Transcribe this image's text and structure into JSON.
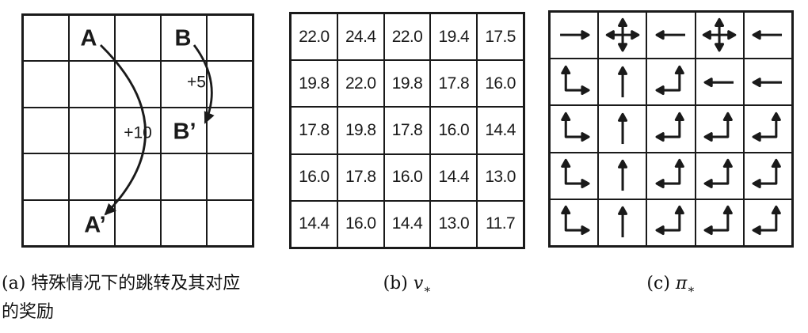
{
  "colors": {
    "ink": "#1a1a1a",
    "background": "#ffffff"
  },
  "panel_a": {
    "rows": 5,
    "cols": 5,
    "state_labels": {
      "A": "A",
      "B": "B",
      "A_prime": "A’",
      "B_prime": "B’"
    },
    "rewards": {
      "A_to_A_prime": "+10",
      "B_to_B_prime": "+5"
    },
    "caption": "(a) 特殊情况下的跳转及其对应的奖励"
  },
  "panel_b": {
    "caption_index": "(b)",
    "caption_symbol": "v",
    "caption_subscript": "∗",
    "values": [
      [
        "22.0",
        "24.4",
        "22.0",
        "19.4",
        "17.5"
      ],
      [
        "19.8",
        "22.0",
        "19.8",
        "17.8",
        "16.0"
      ],
      [
        "17.8",
        "19.8",
        "17.8",
        "16.0",
        "14.4"
      ],
      [
        "16.0",
        "17.8",
        "16.0",
        "14.4",
        "13.0"
      ],
      [
        "14.4",
        "16.0",
        "14.4",
        "13.0",
        "11.7"
      ]
    ]
  },
  "panel_c": {
    "caption_index": "(c)",
    "caption_symbol": "π",
    "caption_subscript": "∗",
    "policy": [
      [
        "right",
        "all-directions",
        "left",
        "all-directions",
        "left"
      ],
      [
        "up-right",
        "up",
        "up-left",
        "left",
        "left"
      ],
      [
        "up-right",
        "up",
        "up-left",
        "up-left",
        "up-left"
      ],
      [
        "up-right",
        "up",
        "up-left",
        "up-left",
        "up-left"
      ],
      [
        "up-right",
        "up",
        "up-left",
        "up-left",
        "up-left"
      ]
    ]
  }
}
